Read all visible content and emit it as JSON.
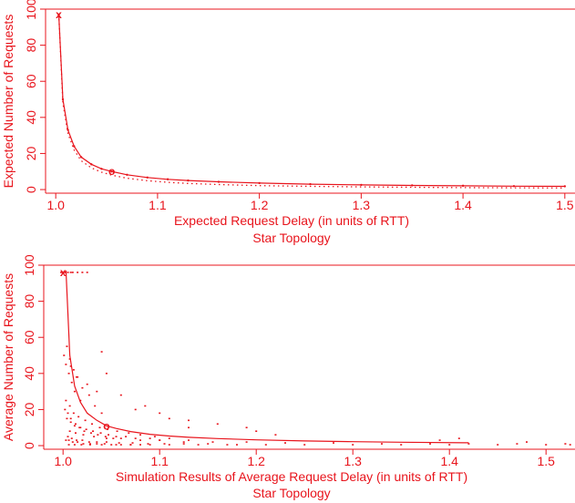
{
  "colors": {
    "accent": "#e8141c",
    "background": "#ffffff"
  },
  "chart_data": [
    {
      "type": "line",
      "title": "",
      "xlabel": "Expected Request Delay (in units of RTT)",
      "caption": "Star Topology",
      "ylabel": "Expected Number of Requests",
      "xlim": [
        0.99,
        1.51
      ],
      "ylim": [
        -2,
        100
      ],
      "xticks": [
        1.0,
        1.1,
        1.2,
        1.3,
        1.4,
        1.5
      ],
      "xtick_labels": [
        "1.0",
        "1.1",
        "1.2",
        "1.3",
        "1.4",
        "1.5"
      ],
      "yticks": [
        0,
        20,
        40,
        60,
        80,
        100
      ],
      "ytick_labels": [
        "0",
        "20",
        "40",
        "60",
        "80",
        "100"
      ],
      "grid": false,
      "series": [
        {
          "style": "solid",
          "x": [
            1.003,
            1.007,
            1.012,
            1.018,
            1.025,
            1.035,
            1.045,
            1.055,
            1.07,
            1.09,
            1.11,
            1.13,
            1.16,
            1.2,
            1.25,
            1.3,
            1.35,
            1.4,
            1.45,
            1.5
          ],
          "y": [
            97,
            50,
            33,
            24,
            18,
            14,
            11.5,
            10,
            8.2,
            6.7,
            5.7,
            5.0,
            4.3,
            3.6,
            3.0,
            2.6,
            2.3,
            2.1,
            1.9,
            1.8
          ]
        },
        {
          "style": "dotted",
          "x": [
            1.003,
            1.007,
            1.012,
            1.018,
            1.025,
            1.035,
            1.045,
            1.055,
            1.07,
            1.09,
            1.11,
            1.13,
            1.16,
            1.2,
            1.25,
            1.3,
            1.35,
            1.4,
            1.45,
            1.5
          ],
          "y": [
            97,
            48,
            31,
            22,
            16,
            12,
            9.6,
            8.0,
            6.3,
            4.9,
            4.0,
            3.4,
            2.8,
            2.2,
            1.8,
            1.5,
            1.3,
            1.1,
            1.0,
            0.9
          ]
        }
      ],
      "annotations": [
        {
          "label": "x",
          "x": 1.003,
          "y": 97
        },
        {
          "label": "o",
          "x": 1.055,
          "y": 10
        }
      ]
    },
    {
      "type": "scatter",
      "title": "",
      "xlabel": "Simulation Results of Average Request Delay (in units of RTT)",
      "caption": "Star Topology",
      "ylabel": "Average Number of Requests",
      "xlim": [
        0.98,
        1.53
      ],
      "ylim": [
        -2,
        100
      ],
      "xticks": [
        1.0,
        1.1,
        1.2,
        1.3,
        1.4,
        1.5
      ],
      "xtick_labels": [
        "1.0",
        "1.1",
        "1.2",
        "1.3",
        "1.4",
        "1.5"
      ],
      "yticks": [
        0,
        20,
        40,
        60,
        80,
        100
      ],
      "ytick_labels": [
        "0",
        "20",
        "40",
        "60",
        "80",
        "100"
      ],
      "grid": false,
      "curve": {
        "x": [
          1.003,
          1.007,
          1.012,
          1.018,
          1.025,
          1.035,
          1.045,
          1.055,
          1.07,
          1.09,
          1.11,
          1.13,
          1.16,
          1.2,
          1.25,
          1.3,
          1.35,
          1.42
        ],
        "y": [
          97,
          50,
          33,
          24,
          18,
          14,
          11,
          9.5,
          7.8,
          6.3,
          5.3,
          4.6,
          3.9,
          3.2,
          2.6,
          2.2,
          1.9,
          1.6
        ]
      },
      "points": {
        "x": [
          0.998,
          1.0,
          1.002,
          1.005,
          1.008,
          1.01,
          1.015,
          1.02,
          1.025,
          1.001,
          1.003,
          1.006,
          1.009,
          1.012,
          1.018,
          1.004,
          1.007,
          1.011,
          1.014,
          1.02,
          1.027,
          1.033,
          1.04,
          1.002,
          1.005,
          1.008,
          1.013,
          1.017,
          1.022,
          1.029,
          1.036,
          1.044,
          1.052,
          1.003,
          1.006,
          1.01,
          1.015,
          1.021,
          1.028,
          1.035,
          1.043,
          1.05,
          1.06,
          1.07,
          1.08,
          1.004,
          1.008,
          1.012,
          1.018,
          1.024,
          1.031,
          1.039,
          1.047,
          1.055,
          1.065,
          1.075,
          1.09,
          1.1,
          1.003,
          1.007,
          1.011,
          1.016,
          1.023,
          1.03,
          1.038,
          1.046,
          1.056,
          1.068,
          1.08,
          1.095,
          1.11,
          1.13,
          1.005,
          1.009,
          1.014,
          1.02,
          1.027,
          1.035,
          1.045,
          1.058,
          1.072,
          1.088,
          1.105,
          1.125,
          1.15,
          1.18,
          1.006,
          1.012,
          1.019,
          1.028,
          1.04,
          1.055,
          1.07,
          1.09,
          1.11,
          1.14,
          1.17,
          1.21,
          1.25,
          1.3,
          1.35,
          1.4,
          1.45,
          1.5,
          1.007,
          1.013,
          1.021,
          1.032,
          1.045,
          1.06,
          1.08,
          1.1,
          1.125,
          1.155,
          1.19,
          1.23,
          1.28,
          1.33,
          1.38,
          1.42,
          1.47,
          1.52,
          1.04,
          1.035,
          1.06,
          1.075,
          1.11,
          1.13,
          1.16,
          1.19,
          1.2,
          1.22,
          1.13,
          1.1,
          1.085,
          1.045,
          1.39,
          1.41,
          1.48,
          1.525,
          1.025,
          1.015,
          1.008
        ],
        "y": [
          96,
          96,
          96,
          96,
          96,
          96,
          96,
          96,
          96,
          50,
          45,
          40,
          35,
          30,
          25,
          55,
          48,
          42,
          38,
          32,
          28,
          22,
          18,
          20,
          18,
          15,
          12,
          10,
          8,
          7,
          6,
          5,
          4,
          3,
          3,
          2,
          2,
          1,
          1,
          1,
          1,
          0.5,
          0.5,
          0.5,
          0.5,
          15,
          13,
          11,
          10,
          9,
          8,
          7,
          6,
          5,
          5,
          4,
          4,
          3,
          25,
          22,
          18,
          16,
          14,
          12,
          10,
          9,
          8,
          7,
          6,
          5,
          4,
          3,
          5,
          4,
          3,
          3,
          2,
          2,
          2,
          1.5,
          1.5,
          1,
          1,
          1,
          1,
          0.5,
          0.5,
          0.5,
          0.5,
          0.5,
          0.5,
          0.5,
          0.5,
          0.5,
          0.5,
          0.5,
          0.5,
          0.5,
          0.5,
          0.5,
          0.5,
          0.5,
          0.5,
          0.5,
          8,
          7,
          6,
          5,
          4,
          4,
          3,
          3,
          2,
          2,
          2,
          1.5,
          1.5,
          1,
          1,
          1,
          1,
          1,
          52,
          30,
          28,
          20,
          15,
          14,
          12,
          10,
          8,
          6,
          10,
          18,
          22,
          40,
          3,
          4,
          2,
          0.5,
          34,
          38,
          44
        ]
      },
      "annotations": [
        {
          "label": "x",
          "x": 1.0,
          "y": 96
        },
        {
          "label": "o",
          "x": 1.045,
          "y": 11
        }
      ]
    }
  ]
}
